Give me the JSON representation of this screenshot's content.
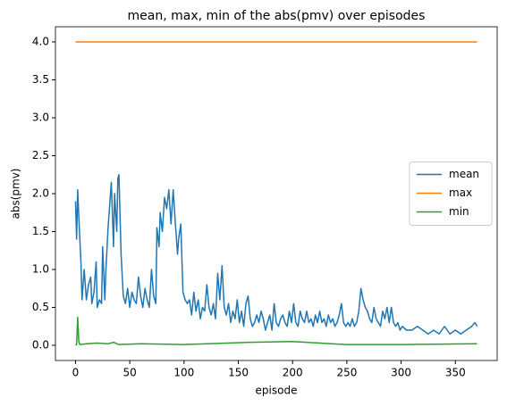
{
  "chart_data": {
    "type": "line",
    "title": "mean, max, min of the abs(pmv) over episodes",
    "xlabel": "episode",
    "ylabel": "abs(pmv)",
    "xlim": [
      -18.5,
      388.5
    ],
    "xticks": [
      0,
      50,
      100,
      150,
      200,
      250,
      300,
      350
    ],
    "ylim": [
      -0.2,
      4.2
    ],
    "yticks": [
      {
        "value": 0,
        "label": "0.0"
      },
      {
        "value": 0.5,
        "label": "0.5"
      },
      {
        "value": 1,
        "label": "1.0"
      },
      {
        "value": 1.5,
        "label": "1.5"
      },
      {
        "value": 2,
        "label": "2.0"
      },
      {
        "value": 2.5,
        "label": "2.5"
      },
      {
        "value": 3,
        "label": "3.0"
      },
      {
        "value": 3.5,
        "label": "3.5"
      },
      {
        "value": 4,
        "label": "4.0"
      }
    ],
    "legend": "center right",
    "series": [
      {
        "name": "mean",
        "color": "#1f77b4",
        "x": [
          0,
          1,
          2,
          3,
          5,
          6,
          8,
          10,
          12,
          14,
          15,
          17,
          19,
          20,
          22,
          24,
          25,
          27,
          28,
          30,
          33,
          35,
          36,
          38,
          39,
          40,
          42,
          44,
          46,
          48,
          50,
          52,
          54,
          56,
          58,
          60,
          62,
          64,
          66,
          68,
          70,
          72,
          74,
          75,
          77,
          78,
          80,
          82,
          84,
          86,
          88,
          90,
          92,
          94,
          95,
          97,
          99,
          101,
          103,
          105,
          107,
          109,
          111,
          113,
          115,
          117,
          119,
          121,
          123,
          125,
          127,
          129,
          131,
          133,
          135,
          137,
          139,
          141,
          143,
          145,
          147,
          149,
          151,
          153,
          155,
          157,
          159,
          161,
          163,
          165,
          167,
          169,
          171,
          173,
          175,
          177,
          179,
          181,
          183,
          185,
          187,
          189,
          191,
          193,
          195,
          197,
          199,
          201,
          203,
          205,
          207,
          209,
          211,
          213,
          215,
          217,
          219,
          221,
          223,
          225,
          227,
          229,
          231,
          233,
          235,
          237,
          239,
          241,
          243,
          245,
          247,
          249,
          251,
          253,
          255,
          257,
          259,
          261,
          263,
          265,
          267,
          269,
          271,
          273,
          275,
          277,
          279,
          281,
          283,
          285,
          287,
          289,
          291,
          293,
          295,
          297,
          299,
          301,
          305,
          310,
          315,
          320,
          325,
          330,
          335,
          340,
          345,
          350,
          355,
          360,
          365,
          368,
          370
        ],
        "values": [
          1.9,
          1.4,
          2.05,
          1.7,
          1.1,
          0.6,
          1.0,
          0.6,
          0.8,
          0.9,
          0.55,
          0.7,
          1.1,
          0.5,
          0.6,
          0.55,
          1.3,
          0.6,
          1.0,
          1.55,
          2.15,
          1.3,
          2.0,
          1.5,
          2.2,
          2.25,
          1.2,
          0.65,
          0.55,
          0.75,
          0.5,
          0.7,
          0.6,
          0.55,
          0.9,
          0.65,
          0.5,
          0.75,
          0.6,
          0.5,
          1.0,
          0.65,
          0.55,
          1.55,
          1.3,
          1.75,
          1.5,
          1.95,
          1.8,
          2.05,
          1.6,
          2.05,
          1.6,
          1.2,
          1.4,
          1.6,
          0.7,
          0.6,
          0.55,
          0.6,
          0.4,
          0.7,
          0.45,
          0.6,
          0.35,
          0.5,
          0.45,
          0.8,
          0.5,
          0.4,
          0.55,
          0.35,
          0.95,
          0.6,
          1.05,
          0.5,
          0.4,
          0.55,
          0.3,
          0.45,
          0.35,
          0.6,
          0.3,
          0.45,
          0.25,
          0.55,
          0.65,
          0.35,
          0.25,
          0.3,
          0.4,
          0.3,
          0.45,
          0.35,
          0.2,
          0.3,
          0.4,
          0.2,
          0.55,
          0.3,
          0.25,
          0.35,
          0.4,
          0.3,
          0.25,
          0.45,
          0.3,
          0.55,
          0.3,
          0.25,
          0.45,
          0.35,
          0.3,
          0.45,
          0.3,
          0.35,
          0.25,
          0.4,
          0.3,
          0.45,
          0.3,
          0.35,
          0.25,
          0.4,
          0.3,
          0.35,
          0.25,
          0.3,
          0.4,
          0.55,
          0.3,
          0.25,
          0.3,
          0.25,
          0.35,
          0.25,
          0.3,
          0.45,
          0.75,
          0.6,
          0.5,
          0.45,
          0.35,
          0.3,
          0.5,
          0.35,
          0.3,
          0.25,
          0.45,
          0.35,
          0.5,
          0.3,
          0.5,
          0.3,
          0.25,
          0.3,
          0.2,
          0.25,
          0.2,
          0.2,
          0.25,
          0.2,
          0.15,
          0.2,
          0.15,
          0.25,
          0.15,
          0.2,
          0.15,
          0.2,
          0.25,
          0.3,
          0.25
        ]
      },
      {
        "name": "max",
        "color": "#ff7f0e",
        "x": [
          0,
          370
        ],
        "values": [
          4,
          4
        ]
      },
      {
        "name": "min",
        "color": "#2ca02c",
        "x": [
          0,
          1,
          2,
          3,
          4,
          10,
          20,
          30,
          35,
          40,
          60,
          100,
          140,
          160,
          200,
          250,
          300,
          370
        ],
        "values": [
          0,
          0.01,
          0.37,
          0.05,
          0.01,
          0.02,
          0.03,
          0.02,
          0.04,
          0.01,
          0.02,
          0.01,
          0.03,
          0.04,
          0.05,
          0.01,
          0.01,
          0.02
        ]
      }
    ]
  }
}
